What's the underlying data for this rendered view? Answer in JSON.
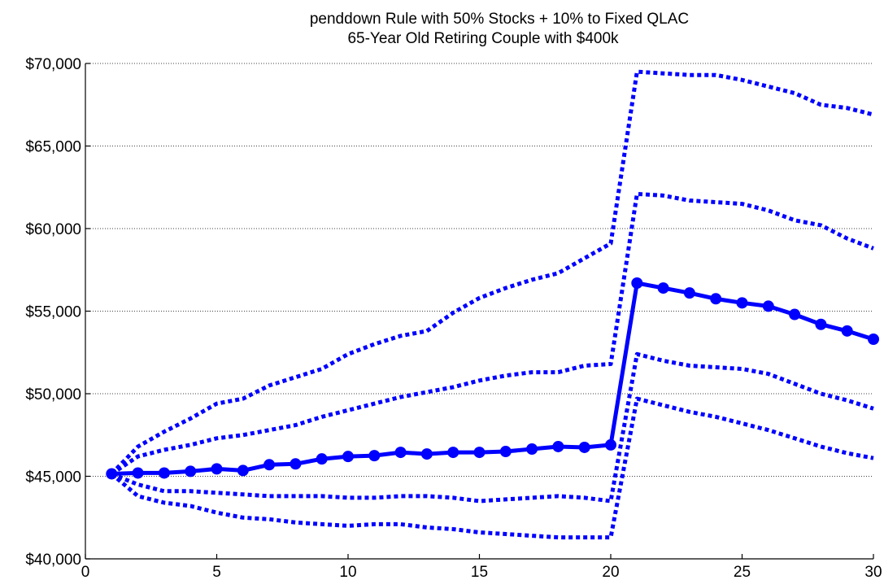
{
  "chart_data": {
    "type": "line",
    "title_lines": [
      "penddown Rule with 50% Stocks + 10% to Fixed QLAC",
      "65-Year Old Retiring Couple with $400k"
    ],
    "xlabel": "",
    "ylabel": "",
    "xlim": [
      0,
      30
    ],
    "ylim": [
      40000,
      70000
    ],
    "x_ticks": [
      0,
      5,
      10,
      15,
      20,
      25,
      30
    ],
    "y_ticks": [
      40000,
      45000,
      50000,
      55000,
      60000,
      65000,
      70000
    ],
    "x_tick_labels": [
      "0",
      "5",
      "10",
      "15",
      "20",
      "25",
      "30"
    ],
    "y_tick_labels": [
      "$40,000",
      "$45,000",
      "$50,000",
      "$55,000",
      "$60,000",
      "$65,000",
      "$70,000"
    ],
    "grid": "horizontal dotted",
    "color": "#0000ff",
    "x": [
      1,
      2,
      3,
      4,
      5,
      6,
      7,
      8,
      9,
      10,
      11,
      12,
      13,
      14,
      15,
      16,
      17,
      18,
      19,
      20,
      21,
      22,
      23,
      24,
      25,
      26,
      27,
      28,
      29,
      30
    ],
    "series": [
      {
        "style": "dotted",
        "values": [
          45150,
          46800,
          47700,
          48500,
          49400,
          49700,
          50500,
          51000,
          51500,
          52400,
          53000,
          53500,
          53800,
          54900,
          55800,
          56400,
          56900,
          57300,
          58200,
          59100,
          69500,
          69400,
          69300,
          69300,
          69000,
          68600,
          68200,
          67500,
          67300,
          66900
        ]
      },
      {
        "style": "dotted",
        "values": [
          45150,
          46200,
          46600,
          46900,
          47300,
          47500,
          47800,
          48100,
          48600,
          49000,
          49400,
          49800,
          50100,
          50400,
          50800,
          51100,
          51300,
          51300,
          51700,
          51800,
          62100,
          62000,
          61700,
          61600,
          61500,
          61100,
          60500,
          60200,
          59400,
          58800
        ]
      },
      {
        "style": "solid-markers",
        "values": [
          45150,
          45200,
          45200,
          45300,
          45450,
          45350,
          45700,
          45750,
          46050,
          46200,
          46250,
          46450,
          46350,
          46450,
          46450,
          46500,
          46650,
          46800,
          46750,
          46900,
          56700,
          56400,
          56100,
          55750,
          55500,
          55300,
          54800,
          54200,
          53800,
          53300
        ]
      },
      {
        "style": "dotted",
        "values": [
          45150,
          44500,
          44100,
          44100,
          44000,
          43900,
          43800,
          43800,
          43800,
          43700,
          43700,
          43800,
          43800,
          43700,
          43500,
          43600,
          43700,
          43800,
          43700,
          43500,
          52400,
          52000,
          51700,
          51600,
          51500,
          51200,
          50600,
          50000,
          49600,
          49100
        ]
      },
      {
        "style": "dotted",
        "values": [
          45150,
          43800,
          43400,
          43200,
          42800,
          42500,
          42400,
          42200,
          42100,
          42000,
          42100,
          42100,
          41900,
          41800,
          41600,
          41500,
          41400,
          41300,
          41300,
          41300,
          49700,
          49300,
          48900,
          48600,
          48200,
          47800,
          47300,
          46800,
          46400,
          46100
        ]
      }
    ]
  }
}
